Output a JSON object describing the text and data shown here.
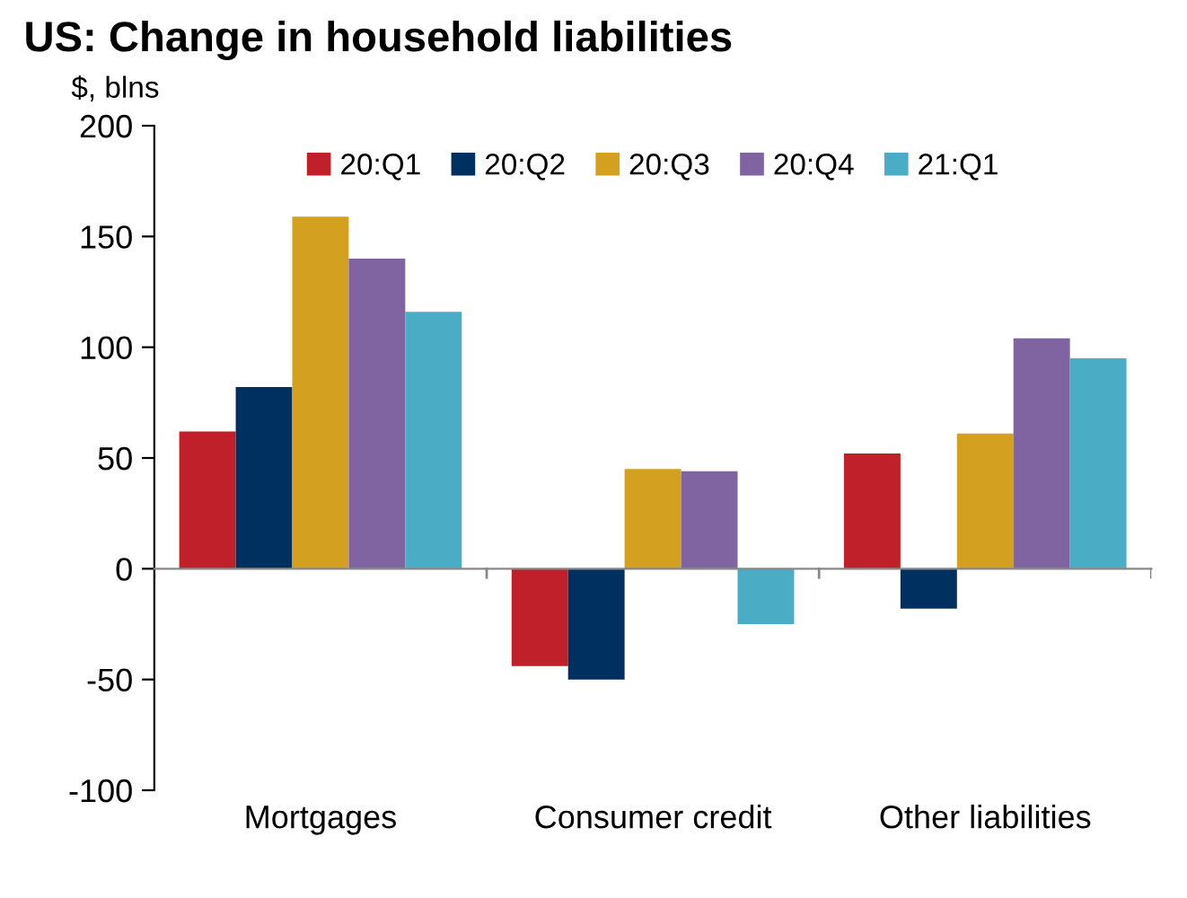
{
  "chart_data": {
    "type": "bar",
    "title": "US: Change in household liabilities",
    "ylabel": "$, blns",
    "categories": [
      "Mortgages",
      "Consumer credit",
      "Other liabilities"
    ],
    "series": [
      {
        "name": "20:Q1",
        "color": "#c0202a",
        "values": [
          62,
          -44,
          52
        ]
      },
      {
        "name": "20:Q2",
        "color": "#00305f",
        "values": [
          82,
          -50,
          -18
        ]
      },
      {
        "name": "20:Q3",
        "color": "#d4a020",
        "values": [
          159,
          45,
          61
        ]
      },
      {
        "name": "20:Q4",
        "color": "#8064a2",
        "values": [
          140,
          44,
          104
        ]
      },
      {
        "name": "21:Q1",
        "color": "#4bacc6",
        "values": [
          116,
          -25,
          95
        ]
      }
    ],
    "ylim": [
      -100,
      200
    ],
    "yticks": [
      -100,
      -50,
      0,
      50,
      100,
      150,
      200
    ],
    "legend": "top"
  }
}
